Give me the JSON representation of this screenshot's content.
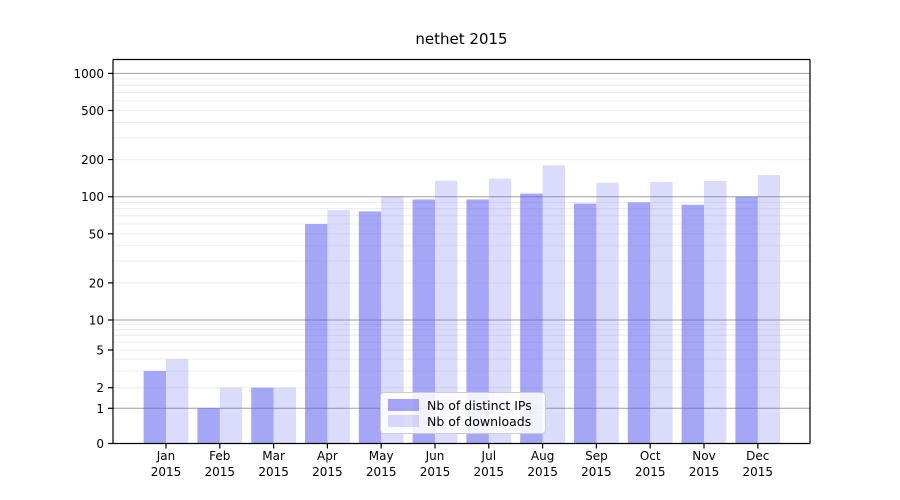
{
  "chart_data": {
    "type": "bar",
    "title": "nethet 2015",
    "categories": [
      "Jan 2015",
      "Feb 2015",
      "Mar 2015",
      "Apr 2015",
      "May 2015",
      "Jun 2015",
      "Jul 2015",
      "Aug 2015",
      "Sep 2015",
      "Oct 2015",
      "Nov 2015",
      "Dec 2015"
    ],
    "series": [
      {
        "name": "Nb of distinct IPs",
        "color": "rgba(92,92,240,0.55)",
        "values": [
          3,
          1,
          2,
          60,
          76,
          95,
          95,
          106,
          88,
          90,
          86,
          100
        ]
      },
      {
        "name": "Nb of downloads",
        "color": "rgba(92,92,240,0.22)",
        "values": [
          4,
          2,
          2,
          78,
          100,
          135,
          140,
          180,
          130,
          132,
          134,
          150
        ]
      }
    ],
    "xlabel": "",
    "ylabel": "",
    "y_axis": {
      "scale": "log-like (log above 10, compressed toward 0 baseline)",
      "tick_values": [
        0,
        1,
        2,
        5,
        10,
        20,
        50,
        100,
        200,
        500,
        1000
      ],
      "range_top": 1300
    },
    "grid": {
      "on": true,
      "dark_lines_at": [
        1,
        10,
        100,
        1000
      ],
      "minor_lines": "2-9 of each decade, light gray"
    },
    "legend": {
      "position": "inside-bottom-center",
      "entries": [
        "Nb of distinct IPs",
        "Nb of downloads"
      ]
    }
  },
  "colors": {
    "grid_major": "#9f9f9f",
    "grid_minor": "#ececec",
    "axis": "#000000",
    "tick_text": "#000000",
    "legend_border": "#cccccc"
  }
}
